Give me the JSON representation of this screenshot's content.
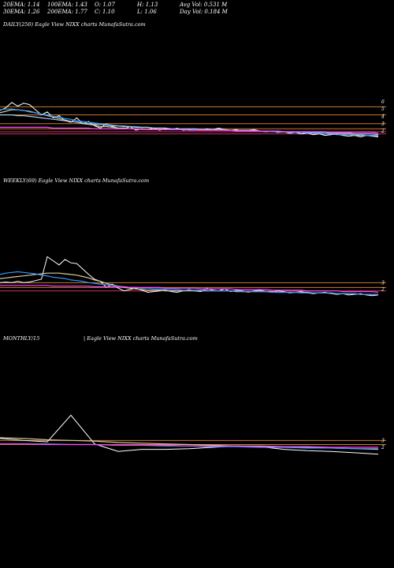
{
  "header": {
    "row1": [
      "20EMA: 1.14",
      "100EMA: 1.43",
      "O: 1.07",
      "H: 1.13",
      "Avg Vol: 0.531 M"
    ],
    "row2": [
      "30EMA: 1.26",
      "200EMA: 1.77",
      "C: 1.10",
      "L: 1.06",
      "Day Vol: 0.184  M"
    ]
  },
  "panes": {
    "daily": {
      "label": "DAILY(250) Eagle   View  NIXX  charts MunafaSutra.com"
    },
    "weekly": {
      "label": "WEEKLY(69) Eagle   View  NIXX  charts MunafaSutra.com"
    },
    "monthly": {
      "label1": "MONTHLY/15",
      "label2": "| Eagle   View  NIXX  charts MunafaSutra.com"
    }
  },
  "chart_data": [
    {
      "type": "line",
      "name_text": "DAILY",
      "ylim": [
        0.5,
        7.5
      ],
      "y_ticks": [
        "6",
        "5",
        "4",
        "3",
        "2"
      ],
      "tick_values": [
        6,
        5,
        4,
        3,
        2
      ],
      "hlines": [
        {
          "y": 5.3,
          "color": "#c87a30"
        },
        {
          "y": 4.2,
          "color": "#c87a30"
        },
        {
          "y": 3.0,
          "color": "#c87a30"
        },
        {
          "y": 2.3,
          "color": "#c87a30"
        },
        {
          "y": 1.9,
          "color": "#cc3366"
        },
        {
          "y": 1.6,
          "color": "#cc3366"
        }
      ],
      "series": [
        {
          "color": "#ffffff",
          "values": [
            4.8,
            5.2,
            5.9,
            5.4,
            5.8,
            5.6,
            4.9,
            4.2,
            4.6,
            3.8,
            4.1,
            3.4,
            3.2,
            3.8,
            3.0,
            3.3,
            2.7,
            2.4,
            3.0,
            2.6,
            2.4,
            2.3,
            2.6,
            2.1,
            2.3,
            2.2,
            2.4,
            2.1,
            2.3,
            2.2,
            2.4,
            2.1,
            2.2,
            2.3,
            2.1,
            2.3,
            2.2,
            2.4,
            2.2,
            2.1,
            2.2,
            2.0,
            2.1,
            2.2,
            2.0,
            1.9,
            2.0,
            1.8,
            1.9,
            1.7,
            1.8,
            1.6,
            1.7,
            1.5,
            1.6,
            1.4,
            1.5,
            1.6,
            1.4,
            1.3,
            1.4,
            1.2,
            1.4,
            1.3,
            1.2
          ]
        },
        {
          "color": "#d8c89a",
          "values": [
            4.5,
            4.7,
            4.9,
            4.9,
            4.8,
            4.7,
            4.5,
            4.3,
            4.1,
            3.9,
            3.7,
            3.5,
            3.3,
            3.2,
            3.0,
            2.9,
            2.8,
            2.6,
            2.6,
            2.5,
            2.4,
            2.4,
            2.3,
            2.3,
            2.3,
            2.2,
            2.2,
            2.2,
            2.2,
            2.2,
            2.2,
            2.2,
            2.2,
            2.2,
            2.2,
            2.2,
            2.2,
            2.2,
            2.2,
            2.1,
            2.1,
            2.1,
            2.1,
            2.1,
            2.0,
            2.0,
            2.0,
            1.9,
            1.9,
            1.8,
            1.8,
            1.8,
            1.7,
            1.7,
            1.6,
            1.6,
            1.6,
            1.5,
            1.5,
            1.5,
            1.4,
            1.4,
            1.4,
            1.4,
            1.3
          ]
        },
        {
          "color": "#3399ff",
          "values": [
            4.9,
            5.0,
            5.0,
            4.9,
            4.8,
            4.6,
            4.5,
            4.3,
            4.2,
            4.0,
            3.9,
            3.7,
            3.6,
            3.4,
            3.3,
            3.2,
            3.1,
            3.0,
            2.9,
            2.8,
            2.7,
            2.7,
            2.6,
            2.6,
            2.5,
            2.5,
            2.4,
            2.4,
            2.4,
            2.3,
            2.3,
            2.3,
            2.3,
            2.2,
            2.2,
            2.2,
            2.2,
            2.2,
            2.1,
            2.1,
            2.1,
            2.1,
            2.0,
            2.0,
            2.0,
            2.0,
            1.9,
            1.9,
            1.9,
            1.8,
            1.8,
            1.8,
            1.7,
            1.7,
            1.7,
            1.6,
            1.6,
            1.6,
            1.5,
            1.5,
            1.5,
            1.5,
            1.4,
            1.4,
            1.4
          ]
        },
        {
          "color": "#a8c8e8",
          "values": [
            4.2,
            4.2,
            4.2,
            4.1,
            4.1,
            4.0,
            3.9,
            3.8,
            3.7,
            3.6,
            3.5,
            3.4,
            3.3,
            3.2,
            3.1,
            3.0,
            2.9,
            2.9,
            2.8,
            2.7,
            2.7,
            2.6,
            2.6,
            2.5,
            2.5,
            2.5,
            2.4,
            2.4,
            2.4,
            2.3,
            2.3,
            2.3,
            2.3,
            2.3,
            2.2,
            2.2,
            2.2,
            2.2,
            2.2,
            2.1,
            2.1,
            2.1,
            2.1,
            2.1,
            2.0,
            2.0,
            2.0,
            2.0,
            1.9,
            1.9,
            1.9,
            1.9,
            1.8,
            1.8,
            1.8,
            1.8,
            1.7,
            1.7,
            1.7,
            1.7,
            1.6,
            1.6,
            1.6,
            1.6,
            1.5
          ]
        },
        {
          "color": "#ff44ff",
          "values": [
            2.5,
            2.5,
            2.5,
            2.5,
            2.5,
            2.5,
            2.5,
            2.5,
            2.5,
            2.4,
            2.4,
            2.4,
            2.4,
            2.4,
            2.4,
            2.4,
            2.3,
            2.3,
            2.3,
            2.3,
            2.3,
            2.3,
            2.3,
            2.3,
            2.2,
            2.2,
            2.2,
            2.2,
            2.2,
            2.2,
            2.2,
            2.2,
            2.1,
            2.1,
            2.1,
            2.1,
            2.1,
            2.1,
            2.1,
            2.1,
            2.0,
            2.0,
            2.0,
            2.0,
            2.0,
            2.0,
            2.0,
            2.0,
            1.9,
            1.9,
            1.9,
            1.9,
            1.9,
            1.9,
            1.9,
            1.9,
            1.8,
            1.8,
            1.8,
            1.8,
            1.8,
            1.8,
            1.8,
            1.8,
            1.7
          ]
        }
      ]
    },
    {
      "type": "line",
      "name_text": "WEEKLY",
      "ylim": [
        0.5,
        8
      ],
      "y_ticks": [
        "3",
        "2"
      ],
      "tick_values": [
        3,
        2
      ],
      "hlines": [
        {
          "y": 3.0,
          "color": "#c87a30"
        },
        {
          "y": 2.3,
          "color": "#c87a30"
        },
        {
          "y": 1.8,
          "color": "#cc3366"
        }
      ],
      "series": [
        {
          "color": "#ffffff",
          "values": [
            3.0,
            3.1,
            3.0,
            3.2,
            3.0,
            3.1,
            3.3,
            3.5,
            6.8,
            6.2,
            5.6,
            6.4,
            5.9,
            5.8,
            5.0,
            4.2,
            3.5,
            3.2,
            2.3,
            2.8,
            2.2,
            1.8,
            2.0,
            2.2,
            1.9,
            1.6,
            1.7,
            1.8,
            1.9,
            1.7,
            1.6,
            1.8,
            2.0,
            1.8,
            1.7,
            2.2,
            1.9,
            1.8,
            2.1,
            1.7,
            1.9,
            1.8,
            1.6,
            1.8,
            1.9,
            1.7,
            1.6,
            1.8,
            1.7,
            1.5,
            1.6,
            1.7,
            1.5,
            1.4,
            1.5,
            1.6,
            1.4,
            1.3,
            1.4,
            1.2,
            1.3,
            1.4,
            1.2,
            1.1,
            1.2
          ]
        },
        {
          "color": "#d8c89a",
          "values": [
            3.6,
            3.7,
            3.8,
            3.9,
            4.0,
            4.1,
            4.2,
            4.3,
            4.4,
            4.4,
            4.4,
            4.3,
            4.2,
            4.1,
            3.9,
            3.7,
            3.4,
            3.2,
            2.9,
            2.7,
            2.5,
            2.3,
            2.2,
            2.1,
            2.0,
            1.9,
            1.9,
            1.9,
            1.8,
            1.8,
            1.8,
            1.8,
            1.8,
            1.8,
            1.8,
            1.8,
            1.8,
            1.8,
            1.8,
            1.8,
            1.7,
            1.7,
            1.7,
            1.7,
            1.7,
            1.7,
            1.7,
            1.6,
            1.6,
            1.6,
            1.6,
            1.6,
            1.6,
            1.5,
            1.5,
            1.5,
            1.5,
            1.4,
            1.4,
            1.4,
            1.4,
            1.3,
            1.3,
            1.3,
            1.3
          ]
        },
        {
          "color": "#3399ff",
          "values": [
            4.2,
            4.4,
            4.5,
            4.6,
            4.5,
            4.4,
            4.3,
            4.1,
            4.0,
            3.8,
            3.7,
            3.6,
            3.4,
            3.3,
            3.2,
            3.0,
            2.9,
            2.8,
            2.7,
            2.6,
            2.5,
            2.4,
            2.3,
            2.3,
            2.2,
            2.2,
            2.1,
            2.1,
            2.0,
            2.0,
            2.0,
            1.9,
            1.9,
            1.9,
            1.9,
            1.9,
            1.8,
            1.8,
            1.8,
            1.8,
            1.8,
            1.7,
            1.7,
            1.7,
            1.7,
            1.7,
            1.6,
            1.6,
            1.6,
            1.6,
            1.6,
            1.5,
            1.5,
            1.5,
            1.5,
            1.5,
            1.4,
            1.4,
            1.4,
            1.4,
            1.4,
            1.3,
            1.3,
            1.3,
            1.3
          ]
        },
        {
          "color": "#ff44ff",
          "values": [
            2.6,
            2.6,
            2.6,
            2.6,
            2.6,
            2.6,
            2.6,
            2.6,
            2.6,
            2.5,
            2.5,
            2.5,
            2.5,
            2.5,
            2.5,
            2.5,
            2.4,
            2.4,
            2.4,
            2.4,
            2.4,
            2.4,
            2.3,
            2.3,
            2.3,
            2.3,
            2.3,
            2.3,
            2.2,
            2.2,
            2.2,
            2.2,
            2.2,
            2.2,
            2.1,
            2.1,
            2.1,
            2.1,
            2.1,
            2.1,
            2.0,
            2.0,
            2.0,
            2.0,
            2.0,
            2.0,
            1.9,
            1.9,
            1.9,
            1.9,
            1.9,
            1.9,
            1.8,
            1.8,
            1.8,
            1.8,
            1.8,
            1.8,
            1.7,
            1.7,
            1.7,
            1.7,
            1.7,
            1.7,
            1.6
          ]
        }
      ]
    },
    {
      "type": "line",
      "name_text": "MONTHLY",
      "ylim": [
        0.5,
        8
      ],
      "y_ticks": [
        "3",
        "2"
      ],
      "tick_values": [
        3,
        2
      ],
      "hlines": [
        {
          "y": 3.0,
          "color": "#c87a30"
        },
        {
          "y": 2.4,
          "color": "#c87a30"
        }
      ],
      "series": [
        {
          "color": "#ffffff",
          "values": [
            3.3,
            3.0,
            2.8,
            6.7,
            2.5,
            1.4,
            1.7,
            1.7,
            1.8,
            2.0,
            2.2,
            2.1,
            1.7,
            1.5,
            1.4,
            1.2,
            1.0
          ]
        },
        {
          "color": "#d8c89a",
          "values": [
            3.4,
            3.3,
            3.1,
            3.0,
            2.9,
            2.7,
            2.6,
            2.5,
            2.4,
            2.3,
            2.2,
            2.2,
            2.1,
            2.0,
            1.9,
            1.8,
            1.7
          ]
        },
        {
          "color": "#3399ff",
          "values": [
            2.5,
            2.5,
            2.5,
            2.4,
            2.4,
            2.3,
            2.3,
            2.2,
            2.2,
            2.1,
            2.1,
            2.0,
            2.0,
            1.9,
            1.9,
            1.8,
            1.8
          ]
        },
        {
          "color": "#ff44ff",
          "values": [
            2.5,
            2.5,
            2.4,
            2.4,
            2.4,
            2.3,
            2.3,
            2.3,
            2.2,
            2.2,
            2.2,
            2.1,
            2.1,
            2.1,
            2.0,
            2.0,
            2.0
          ]
        }
      ]
    }
  ]
}
